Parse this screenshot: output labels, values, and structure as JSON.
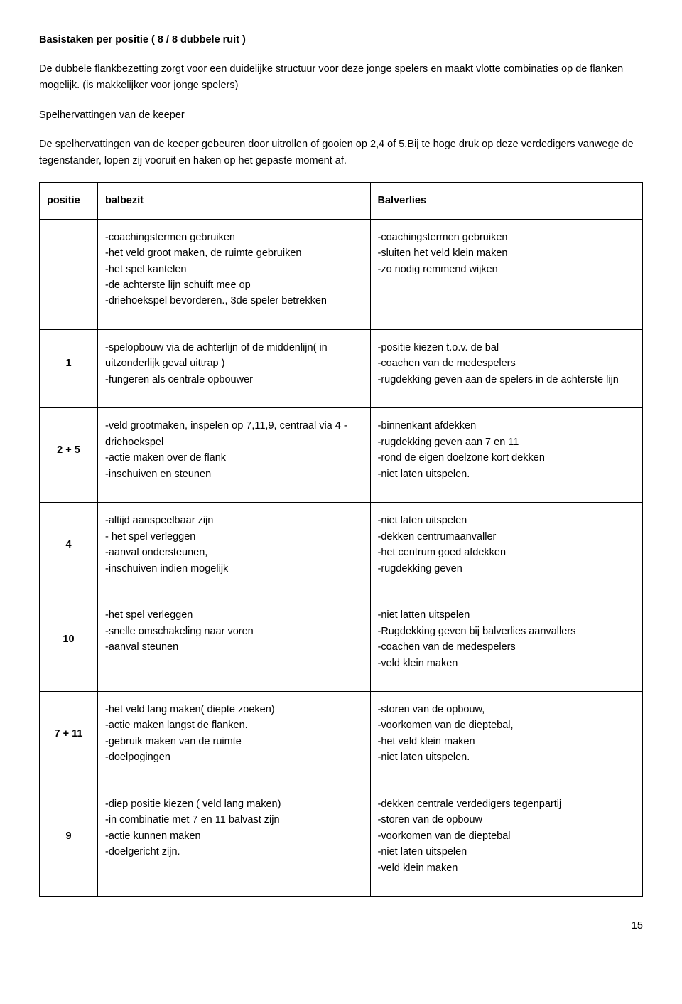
{
  "title": "Basistaken per positie ( 8 / 8  dubbele ruit )",
  "paragraphs": {
    "p1": "De dubbele flankbezetting zorgt voor een duidelijke structuur voor deze jonge spelers en maakt vlotte combinaties op de flanken mogelijk. (is makkelijker voor jonge spelers)",
    "subheading": "Spelhervattingen van de keeper",
    "p2": "De spelhervattingen van de keeper gebeuren door uitrollen of gooien op 2,4 of 5.Bij te hoge druk op deze verdedigers vanwege de tegenstander, lopen zij vooruit en haken op het gepaste moment af."
  },
  "table": {
    "headers": {
      "c1": "positie",
      "c2": "balbezit",
      "c3": "Balverlies"
    },
    "rows": [
      {
        "pos": "",
        "bal": "-coachingstermen gebruiken\n-het veld groot maken, de ruimte gebruiken\n-het spel kantelen\n-de achterste lijn schuift mee op\n-driehoekspel bevorderen., 3de speler betrekken",
        "ver": "-coachingstermen gebruiken\n-sluiten het veld klein maken\n-zo nodig remmend wijken"
      },
      {
        "pos": "1",
        "bal": "-spelopbouw via de achterlijn of de middenlijn( in uitzonderlijk geval uittrap )\n-fungeren als centrale opbouwer",
        "ver": "-positie kiezen t.o.v. de bal\n-coachen van de medespelers\n-rugdekking geven aan de spelers in de achterste lijn"
      },
      {
        "pos": "2 + 5",
        "bal": "-veld grootmaken, inspelen op 7,11,9, centraal via 4 - driehoekspel\n-actie maken over de flank\n-inschuiven en steunen",
        "ver": "-binnenkant afdekken\n-rugdekking geven aan 7 en 11\n-rond de eigen doelzone kort dekken\n-niet laten uitspelen."
      },
      {
        "pos": "4",
        "bal": "-altijd aanspeelbaar zijn\n- het spel verleggen\n-aanval ondersteunen,\n-inschuiven indien mogelijk",
        "ver": "-niet laten uitspelen\n-dekken centrumaanvaller\n-het centrum goed afdekken\n-rugdekking geven"
      },
      {
        "pos": "10",
        "bal": "-het spel verleggen\n-snelle omschakeling naar voren\n-aanval steunen",
        "ver": "-niet latten uitspelen\n-Rugdekking geven bij balverlies aanvallers\n-coachen van de medespelers\n-veld klein maken"
      },
      {
        "pos": "7 + 11",
        "bal": "-het veld lang maken( diepte zoeken)\n-actie maken langst de flanken.\n-gebruik maken van de ruimte\n-doelpogingen",
        "ver": "-storen van de opbouw,\n-voorkomen van de dieptebal,\n-het veld klein maken\n-niet laten uitspelen."
      },
      {
        "pos": "9",
        "bal": "-diep positie kiezen ( veld lang maken)\n-in combinatie met 7 en 11 balvast zijn\n-actie kunnen maken\n-doelgericht zijn.",
        "ver": "-dekken centrale verdedigers tegenpartij\n-storen van de opbouw\n-voorkomen van de dieptebal\n-niet laten uitspelen\n-veld klein maken"
      }
    ]
  },
  "pageNumber": "15"
}
